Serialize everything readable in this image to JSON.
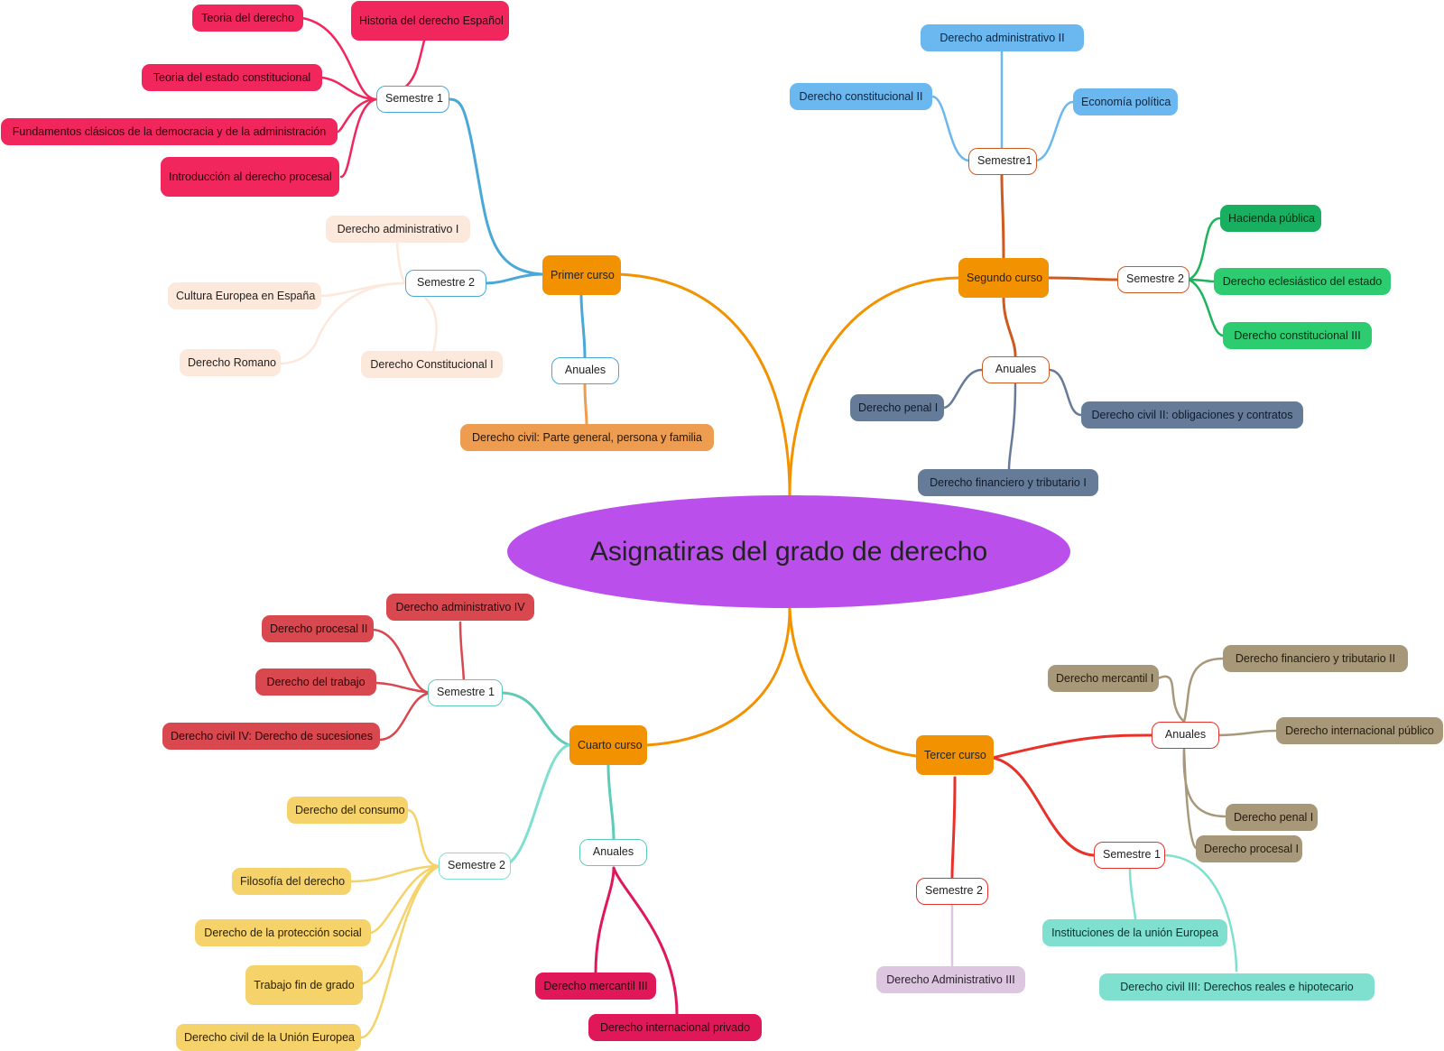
{
  "center": {
    "label": "Asignatiras del grado de derecho",
    "color": "#bb4fec"
  },
  "courses": {
    "primer": {
      "label": "Primer curso",
      "sem1": {
        "label": "Semestre 1",
        "items": [
          "Teoria del derecho",
          "Historia del derecho Español",
          "Teoria del estado constitucional",
          "Fundamentos clásicos de la democracia y de la administración",
          "Introducción al derecho procesal"
        ],
        "color": "#f0265d"
      },
      "sem2": {
        "label": "Semestre 2",
        "items": [
          "Derecho administrativo I",
          "Cultura Europea en España",
          "Derecho Romano",
          "Derecho Constitucional I"
        ],
        "color": "#fde8dc"
      },
      "anuales": {
        "label": "Anuales",
        "items": [
          "Derecho civil: Parte general, persona y familia"
        ],
        "color": "#ed9c50"
      }
    },
    "segundo": {
      "label": "Segundo curso",
      "sem1": {
        "label": "Semestre1",
        "items": [
          "Derecho administrativo II",
          "Derecho constitucional II",
          "Economía política"
        ],
        "color": "#6bb8f0"
      },
      "sem2": {
        "label": "Semestre 2",
        "items": [
          "Hacienda pública",
          "Derecho eclesiástico del estado",
          "Derecho constitucional III"
        ],
        "color": "#2ecc71"
      },
      "anuales": {
        "label": "Anuales",
        "items": [
          "Derecho penal I",
          "Derecho civil II: obligaciones y contratos",
          "Derecho financiero y tributario I"
        ],
        "color": "#657b98"
      }
    },
    "tercero": {
      "label": "Tercer curso",
      "anuales": {
        "label": "Anuales",
        "items": [
          "Derecho mercantil I",
          "Derecho financiero y tributario II",
          "Derecho internacional público",
          "Derecho penal I",
          "Derecho procesal I"
        ],
        "color": "#a8987a"
      },
      "sem1": {
        "label": "Semestre 1",
        "items": [
          "Instituciones de la unión Europea",
          "Derecho civil III: Derechos reales e hipotecario"
        ],
        "color": "#7fe0d0"
      },
      "sem2": {
        "label": "Semestre 2",
        "items": [
          "Derecho Administrativo III"
        ],
        "color": "#dcc6e0"
      }
    },
    "cuarto": {
      "label": "Cuarto curso",
      "sem1": {
        "label": "Semestre 1",
        "items": [
          "Derecho administrativo IV",
          "Derecho procesal II",
          "Derecho del trabajo",
          "Derecho civil IV: Derecho de sucesiones"
        ],
        "color": "#d9474f"
      },
      "sem2": {
        "label": "Semestre 2",
        "items": [
          "Derecho del consumo",
          "Filosofía del derecho",
          "Derecho de la protección social",
          "Trabajo fin de grado",
          "Derecho civil de la Unión Europea"
        ],
        "color": "#f5d36a"
      },
      "anuales": {
        "label": "Anuales",
        "items": [
          "Derecho mercantil III",
          "Derecho internacional privado"
        ],
        "color": "#e0185a"
      }
    }
  }
}
